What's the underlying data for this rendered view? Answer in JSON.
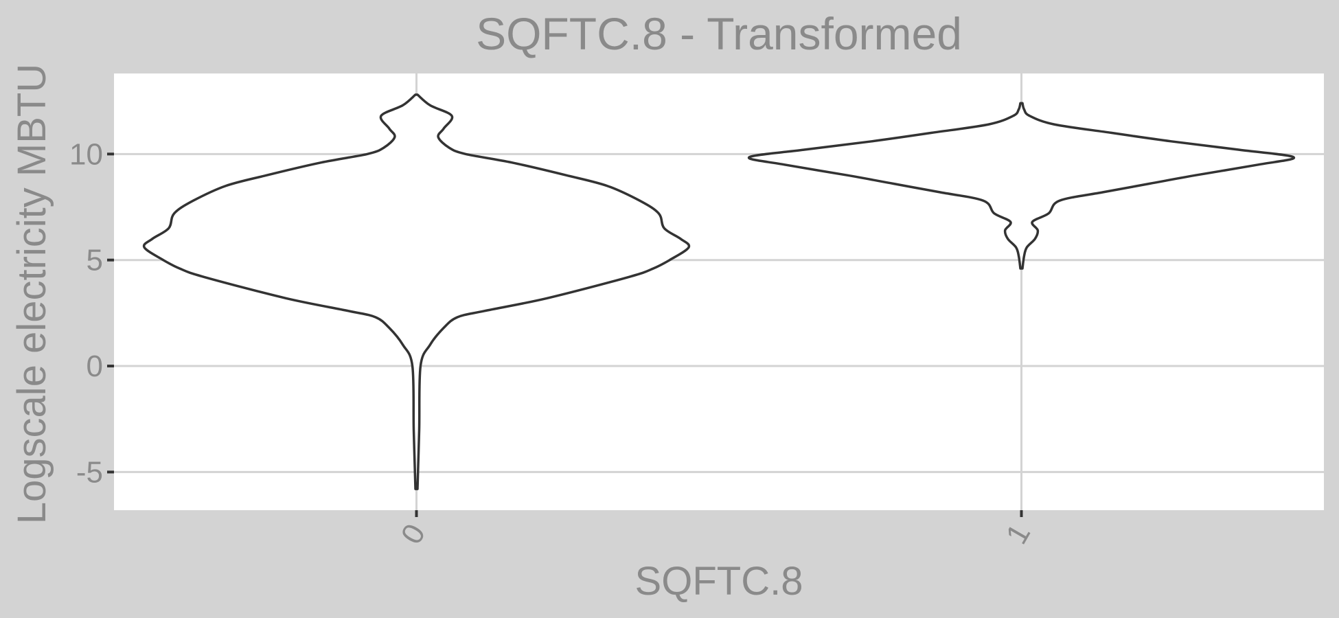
{
  "chart_data": {
    "type": "violin",
    "title": "SQFTC.8 - Transformed",
    "xlabel": "SQFTC.8",
    "ylabel": "Logscale electricity MBTU",
    "categories": [
      "0",
      "1"
    ],
    "ylim": [
      -6.8,
      13.8
    ],
    "yticks": [
      -5,
      0,
      5,
      10
    ],
    "ytick_labels": [
      "-5",
      "0",
      "5",
      "10"
    ],
    "grid": true,
    "colors": {
      "panel_border": "#d3d3d3",
      "plot_background": "#ffffff",
      "grid": "#d3d3d3",
      "outline": "#333333",
      "text": "#8a8a8a"
    },
    "violins": [
      {
        "category": "0",
        "y_min": -5.8,
        "y_max": 12.8,
        "density": [
          [
            -5.8,
            0.0
          ],
          [
            -3.0,
            0.01
          ],
          [
            0.0,
            0.015
          ],
          [
            1.0,
            0.05
          ],
          [
            1.8,
            0.1
          ],
          [
            2.3,
            0.15
          ],
          [
            2.6,
            0.25
          ],
          [
            3.2,
            0.48
          ],
          [
            4.2,
            0.78
          ],
          [
            4.6,
            0.87
          ],
          [
            5.0,
            0.93
          ],
          [
            5.6,
            1.0
          ],
          [
            6.0,
            0.97
          ],
          [
            6.5,
            0.91
          ],
          [
            7.2,
            0.89
          ],
          [
            7.8,
            0.82
          ],
          [
            8.5,
            0.7
          ],
          [
            9.0,
            0.55
          ],
          [
            9.6,
            0.35
          ],
          [
            10.0,
            0.18
          ],
          [
            10.3,
            0.12
          ],
          [
            10.8,
            0.08
          ],
          [
            11.2,
            0.1
          ],
          [
            11.8,
            0.13
          ],
          [
            12.3,
            0.05
          ],
          [
            12.8,
            0.0
          ]
        ]
      },
      {
        "category": "1",
        "y_min": 4.6,
        "y_max": 12.4,
        "density": [
          [
            4.6,
            0.0
          ],
          [
            5.2,
            0.01
          ],
          [
            5.6,
            0.02
          ],
          [
            6.0,
            0.05
          ],
          [
            6.4,
            0.06
          ],
          [
            6.8,
            0.04
          ],
          [
            7.2,
            0.1
          ],
          [
            7.8,
            0.14
          ],
          [
            8.2,
            0.3
          ],
          [
            8.6,
            0.47
          ],
          [
            9.0,
            0.64
          ],
          [
            9.5,
            0.87
          ],
          [
            9.85,
            1.0
          ],
          [
            10.2,
            0.8
          ],
          [
            10.6,
            0.55
          ],
          [
            11.0,
            0.33
          ],
          [
            11.4,
            0.12
          ],
          [
            11.8,
            0.03
          ],
          [
            12.1,
            0.01
          ],
          [
            12.4,
            0.0
          ]
        ]
      }
    ]
  }
}
